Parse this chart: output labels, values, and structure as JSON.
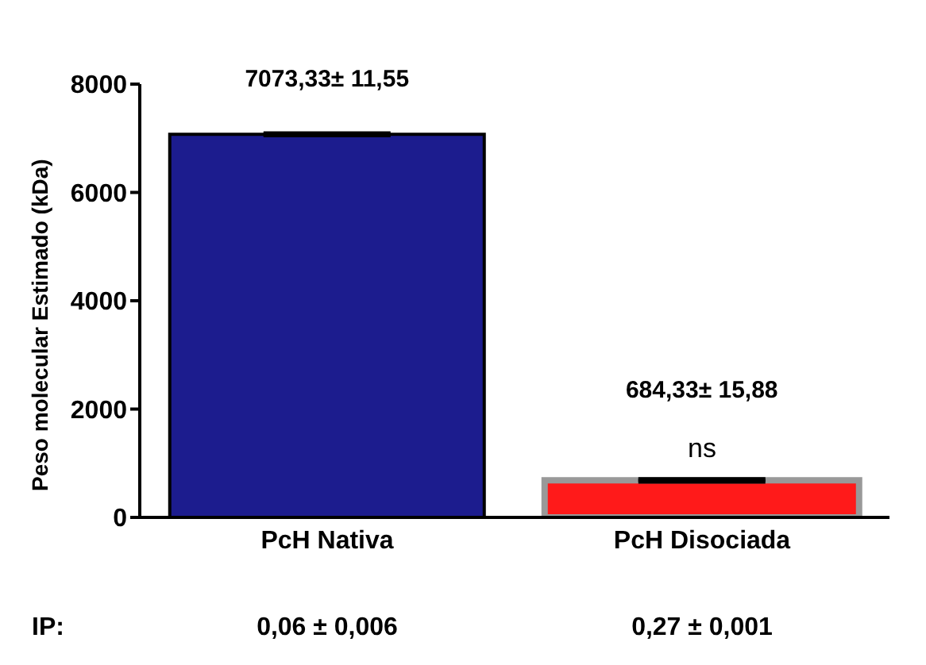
{
  "chart_data": {
    "type": "bar",
    "ylabel": "Peso molecular Estimado (kDa)",
    "categories": [
      "PcH Nativa",
      "PcH Disociada"
    ],
    "values": [
      7073.33,
      684.33
    ],
    "errors": [
      11.55,
      15.88
    ],
    "colors": [
      "#1c1c8e",
      "#ff1a1a"
    ],
    "value_labels": [
      "7073,33± 11,55",
      "684,33± 15,88"
    ],
    "ylim": [
      0,
      8000
    ],
    "yticks": [
      0,
      2000,
      4000,
      6000,
      8000
    ],
    "annotations": [
      "ns",
      "IP:",
      "0,06 ± 0,006",
      "0,27 ± 0,001"
    ]
  }
}
